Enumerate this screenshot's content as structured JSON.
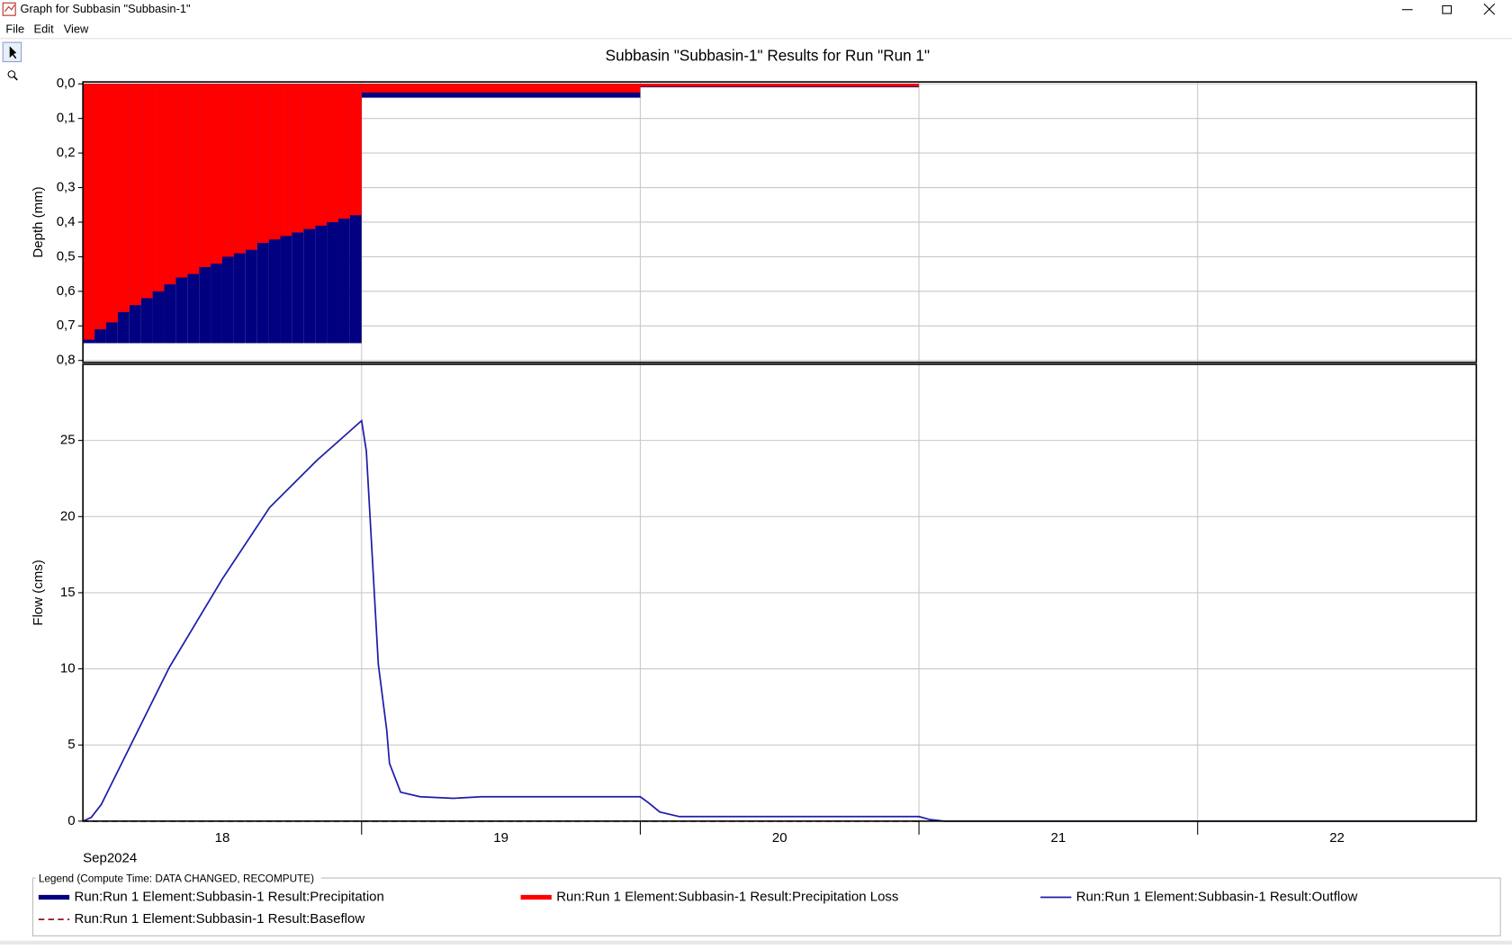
{
  "window_title": "Graph for Subbasin \"Subbasin-1\"",
  "menu": [
    "File",
    "Edit",
    "View"
  ],
  "legend_title": "Legend (Compute Time: DATA CHANGED, RECOMPUTE)",
  "chart_data": [
    {
      "type": "bar",
      "title": "Subbasin \"Subbasin-1\" Results for Run \"Run 1\"",
      "ylabel": "Depth (mm)",
      "inverted_y": true,
      "x": [
        18,
        18.0417,
        18.0833,
        18.125,
        18.1667,
        18.2083,
        18.25,
        18.2917,
        18.3333,
        18.375,
        18.4167,
        18.4583,
        18.5,
        18.5417,
        18.5833,
        18.625,
        18.6667,
        18.7083,
        18.75,
        18.7917,
        18.8333,
        18.875,
        18.9167,
        18.9583,
        19,
        20,
        21
      ],
      "series": [
        {
          "name": "Run:Run 1 Element:Subbasin-1 Result:Precipitation",
          "color": "#000080",
          "values": [
            0.75,
            0.75,
            0.75,
            0.75,
            0.75,
            0.75,
            0.75,
            0.75,
            0.75,
            0.75,
            0.75,
            0.75,
            0.75,
            0.75,
            0.75,
            0.75,
            0.75,
            0.75,
            0.75,
            0.75,
            0.75,
            0.75,
            0.75,
            0.75,
            0.04,
            0.01,
            0
          ]
        },
        {
          "name": "Run:Run 1 Element:Subbasin-1 Result:Precipitation Loss",
          "color": "#ff0000",
          "values": [
            0.74,
            0.71,
            0.69,
            0.66,
            0.64,
            0.62,
            0.6,
            0.58,
            0.56,
            0.55,
            0.53,
            0.52,
            0.5,
            0.49,
            0.48,
            0.46,
            0.45,
            0.44,
            0.43,
            0.42,
            0.41,
            0.4,
            0.39,
            0.38,
            0.025,
            0.008,
            0
          ]
        }
      ],
      "xlim": [
        18,
        23
      ],
      "xgrid": [
        19,
        20,
        21,
        22
      ],
      "ylim": [
        0,
        0.8
      ],
      "yticks": [
        {
          "value": 0,
          "label": "0,0"
        },
        {
          "value": 0.1,
          "label": "0,1"
        },
        {
          "value": 0.2,
          "label": "0,2"
        },
        {
          "value": 0.3,
          "label": "0,3"
        },
        {
          "value": 0.4,
          "label": "0,4"
        },
        {
          "value": 0.5,
          "label": "0,5"
        },
        {
          "value": 0.6,
          "label": "0,6"
        },
        {
          "value": 0.7,
          "label": "0,7"
        },
        {
          "value": 0.8,
          "label": "0,8"
        }
      ],
      "grid": true
    },
    {
      "type": "line",
      "ylabel": "Flow (cms)",
      "xlabel": "Sep2024",
      "series": [
        {
          "name": "Run:Run 1 Element:Subbasin-1 Result:Outflow",
          "color": "#1c1ca8",
          "dash": false,
          "x": [
            18,
            18.03,
            18.066,
            18.15,
            18.31,
            18.5,
            18.67,
            18.84,
            19,
            19.017,
            19.06,
            19.09,
            19.1,
            19.14,
            19.21,
            19.33,
            19.43,
            20,
            20.03,
            20.07,
            20.14,
            21,
            21.04,
            21.09,
            23
          ],
          "values": [
            0,
            0.25,
            1.1,
            4.2,
            10.1,
            15.9,
            20.6,
            23.7,
            26.3,
            24.3,
            10.3,
            6,
            3.8,
            1.9,
            1.6,
            1.5,
            1.6,
            1.6,
            1.2,
            0.6,
            0.3,
            0.3,
            0.1,
            0,
            0
          ]
        },
        {
          "name": "Run:Run 1 Element:Subbasin-1 Result:Baseflow",
          "color": "#8b1a1a",
          "dash": true,
          "x": [
            18,
            21
          ],
          "values": [
            0,
            0
          ]
        }
      ],
      "xlim": [
        18,
        23
      ],
      "xgrid": [
        19,
        20,
        21,
        22
      ],
      "xticks": [
        {
          "value": 18.5,
          "label": "18"
        },
        {
          "value": 19.5,
          "label": "19"
        },
        {
          "value": 20.5,
          "label": "20"
        },
        {
          "value": 21.5,
          "label": "21"
        },
        {
          "value": 22.5,
          "label": "22"
        }
      ],
      "ylim": [
        0,
        30
      ],
      "yticks": [
        0,
        5,
        10,
        15,
        20,
        25
      ],
      "grid": true
    }
  ]
}
